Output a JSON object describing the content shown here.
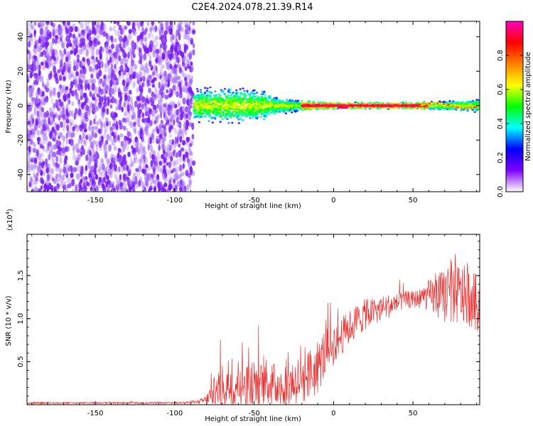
{
  "title": "C2E4.2024.078.21.39.R14",
  "chart_data": [
    {
      "type": "heatmap",
      "xlabel": "Height of straight line (km)",
      "ylabel": "Frequency (Hz)",
      "xlim": [
        -193,
        92
      ],
      "ylim": [
        -50,
        49
      ],
      "x_ticks": [
        -150,
        -100,
        -50,
        0,
        50
      ],
      "y_ticks": [
        -40,
        -20,
        0,
        20,
        40
      ],
      "grid": false,
      "noise_region_x": [
        -193,
        -88
      ],
      "signal_onset_x": -88,
      "signal_spread_hz": [
        {
          "x": -88,
          "hz": 10
        },
        {
          "x": -60,
          "hz": 12
        },
        {
          "x": -45,
          "hz": 10
        },
        {
          "x": -35,
          "hz": 5
        },
        {
          "x": -20,
          "hz": 3
        },
        {
          "x": 0,
          "hz": 2
        },
        {
          "x": 50,
          "hz": 2
        },
        {
          "x": 92,
          "hz": 4
        }
      ],
      "colorbar": {
        "label": "Normalized spectral amplitude",
        "range": [
          0,
          1
        ],
        "ticks": [
          "0.0",
          "0.2",
          "0.4",
          "0.6",
          "0.8"
        ],
        "colors": [
          "#ffffff",
          "#8000ff",
          "#0000ff",
          "#00ffff",
          "#00ff00",
          "#ffff00",
          "#ff8000",
          "#ff0000",
          "#ff00c0"
        ]
      }
    },
    {
      "type": "line",
      "xlabel": "Height of straight line (km)",
      "ylabel": "SNR (10 * v/v)",
      "y_multiplier": "(x10",
      "y_multiplier_exp": "4",
      "y_multiplier_close": ")",
      "xlim": [
        -193,
        92
      ],
      "ylim": [
        0,
        1.98
      ],
      "x_ticks": [
        -150,
        -100,
        -50,
        0,
        50
      ],
      "y_ticks": [
        0.5,
        1.0,
        1.5
      ],
      "y_tick_labels": [
        "0.5",
        "1.0",
        "1.5"
      ],
      "color": "#e83232",
      "grid": false,
      "series": [
        {
          "x": [
            -193,
            -100,
            -85,
            -80,
            -75,
            -70,
            -65,
            -60,
            -55,
            -50,
            -45,
            -40,
            -35,
            -30,
            -25,
            -20,
            -15,
            -10,
            -8,
            -5,
            0,
            5,
            10,
            15,
            20,
            25,
            30,
            35,
            40,
            45,
            50,
            55,
            60,
            65,
            70,
            75,
            80,
            85,
            92
          ],
          "y": [
            0.02,
            0.02,
            0.03,
            0.06,
            0.16,
            0.24,
            0.26,
            0.25,
            0.24,
            0.26,
            0.27,
            0.24,
            0.22,
            0.25,
            0.27,
            0.3,
            0.34,
            0.42,
            0.5,
            0.62,
            0.7,
            0.8,
            0.9,
            0.98,
            1.05,
            1.08,
            1.12,
            1.15,
            1.18,
            1.22,
            1.22,
            1.24,
            1.27,
            1.25,
            1.27,
            1.3,
            1.28,
            1.25,
            1.15
          ],
          "noise_amplitude": [
            0.01,
            0.01,
            0.02,
            0.06,
            0.18,
            0.3,
            0.32,
            0.3,
            0.28,
            0.3,
            0.28,
            0.26,
            0.26,
            0.28,
            0.28,
            0.3,
            0.3,
            0.32,
            0.3,
            0.3,
            0.25,
            0.22,
            0.2,
            0.2,
            0.18,
            0.16,
            0.15,
            0.14,
            0.12,
            0.1,
            0.1,
            0.12,
            0.18,
            0.26,
            0.32,
            0.38,
            0.36,
            0.34,
            0.34
          ]
        }
      ]
    }
  ]
}
